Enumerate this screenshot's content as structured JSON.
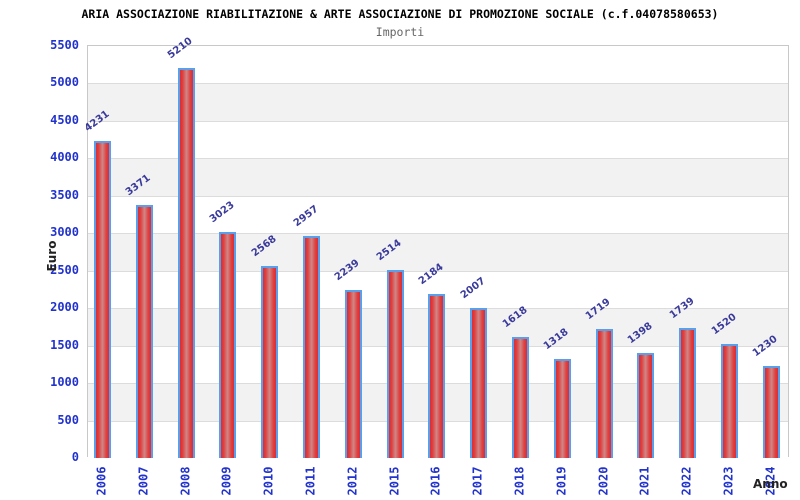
{
  "header": {
    "title": "ARIA ASSOCIAZIONE RIABILITAZIONE & ARTE ASSOCIAZIONE DI PROMOZIONE SOCIALE (c.f.04078580653)",
    "subtitle": "Importi"
  },
  "chart_data": {
    "type": "bar",
    "title": "Importi",
    "categories": [
      "2006",
      "2007",
      "2008",
      "2009",
      "2010",
      "2011",
      "2012",
      "2015",
      "2016",
      "2017",
      "2018",
      "2019",
      "2020",
      "2021",
      "2022",
      "2023",
      "2024"
    ],
    "values": [
      4231,
      3371,
      5210,
      3023,
      2568,
      2957,
      2239,
      2514,
      2184,
      2007,
      1618,
      1318,
      1719,
      1398,
      1739,
      1520,
      1230
    ],
    "xlabel": "Anno",
    "ylabel": "Euro",
    "ylim": [
      0,
      5500
    ],
    "ytick_step": 500,
    "grid": "horizontal",
    "legend": "none",
    "value_labels_shown": true
  },
  "colors": {
    "bar_edge_red": "#e02a2e",
    "bar_mid_red": "#dd4343",
    "bar_center_light": "#d08888",
    "bar_border_blue": "#58a0ec",
    "axis_tick_blue": "#2233cc",
    "value_label_blue": "#3a3a9b",
    "band_gray": "#f2f2f2",
    "band_white": "#ffffff",
    "grid_line": "#dcdcdc",
    "plot_border": "#c8c8c8",
    "title_color": "#000000",
    "subtitle_color": "#666666",
    "axis_title_color": "#222222"
  }
}
